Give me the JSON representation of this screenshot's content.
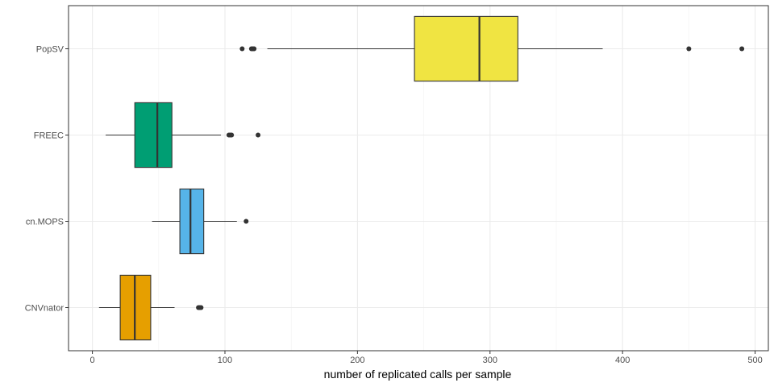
{
  "chart_data": {
    "type": "boxplot",
    "orientation": "horizontal",
    "xlabel": "number of replicated calls per sample",
    "ylabel": "",
    "xlim": [
      -18,
      510
    ],
    "x_ticks": [
      0,
      100,
      200,
      300,
      400,
      500
    ],
    "grid": true,
    "legend": "none",
    "categories": [
      "PopSV",
      "FREEC",
      "cn.MOPS",
      "CNVnator"
    ],
    "series": [
      {
        "category": "PopSV",
        "color": "#F0E442",
        "whisker_low": 132,
        "q1": 243,
        "median": 292,
        "q3": 321,
        "whisker_high": 385,
        "outliers": [
          113,
          120,
          121,
          122,
          450,
          490
        ]
      },
      {
        "category": "FREEC",
        "color": "#009E73",
        "whisker_low": 10,
        "q1": 32,
        "median": 49,
        "q3": 60,
        "whisker_high": 97,
        "outliers": [
          103,
          104,
          105,
          125
        ]
      },
      {
        "category": "cn.MOPS",
        "color": "#56B4E9",
        "whisker_low": 45,
        "q1": 66,
        "median": 74,
        "q3": 84,
        "whisker_high": 109,
        "outliers": [
          116
        ]
      },
      {
        "category": "CNVnator",
        "color": "#E69F00",
        "whisker_low": 5,
        "q1": 21,
        "median": 32,
        "q3": 44,
        "whisker_high": 62,
        "outliers": [
          80,
          81,
          82
        ]
      }
    ]
  }
}
